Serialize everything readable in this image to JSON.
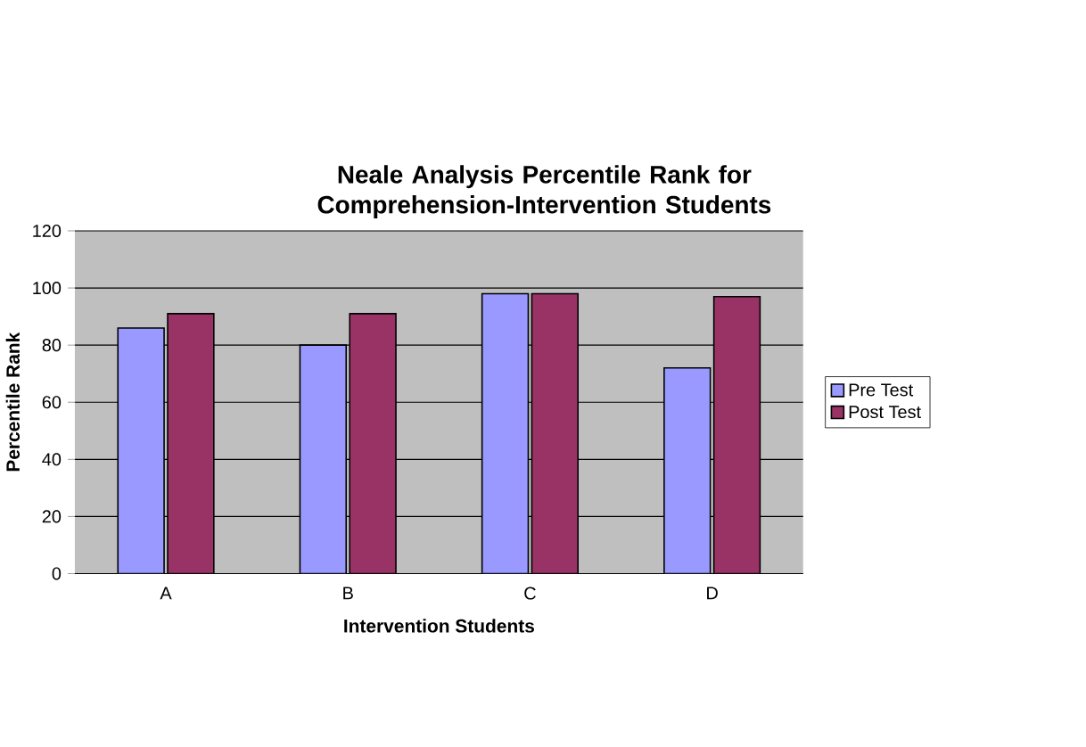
{
  "chart_data": {
    "type": "bar",
    "title": "Neale Analysis Percentile Rank for Comprehension-Intervention Students",
    "xlabel": "Intervention Students",
    "ylabel": "Percentile Rank",
    "categories": [
      "A",
      "B",
      "C",
      "D"
    ],
    "series": [
      {
        "name": "Pre Test",
        "color": "#9999ff",
        "values": [
          86,
          80,
          98,
          72
        ]
      },
      {
        "name": "Post Test",
        "color": "#993366",
        "values": [
          91,
          91,
          98,
          97
        ]
      }
    ],
    "ylim": [
      0,
      120
    ],
    "yticks": [
      0,
      20,
      40,
      60,
      80,
      100,
      120
    ],
    "grid": "y",
    "legend": "right"
  }
}
